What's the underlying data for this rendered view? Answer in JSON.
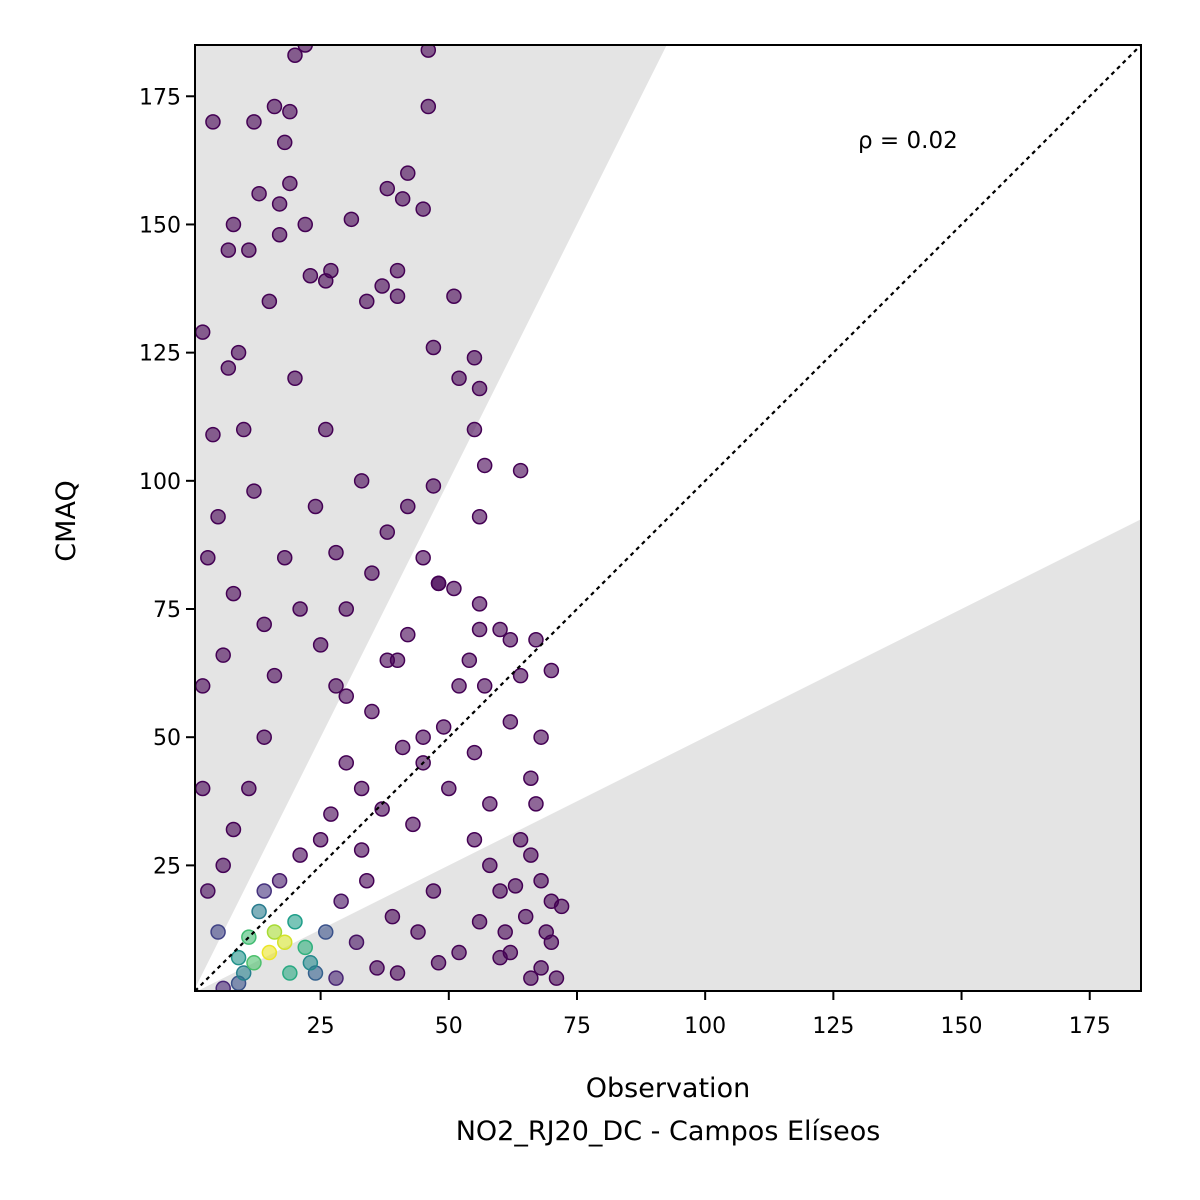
{
  "chart_data": {
    "type": "scatter",
    "title": "",
    "xlabel": "Observation",
    "xlabel_sub": "NO2_RJ20_DC - Campos Elíseos",
    "ylabel": "CMAQ",
    "xlim": [
      0.5,
      185
    ],
    "ylim": [
      0.5,
      185
    ],
    "xticks": [
      "25",
      "50",
      "75",
      "100",
      "125",
      "150",
      "175"
    ],
    "yticks": [
      "25",
      "50",
      "75",
      "100",
      "125",
      "150",
      "175"
    ],
    "annotation": "ρ = 0.02",
    "reference_line": "1:1 dotted",
    "shaded_regions": [
      {
        "description": "above factor-2 band",
        "slope_min": 2.0
      },
      {
        "description": "below factor-0.5 band",
        "slope_max": 0.5
      }
    ],
    "colormap": "viridis (point density)",
    "grid": false,
    "points_sample": [
      [
        15,
        8
      ],
      [
        18,
        10
      ],
      [
        12,
        6
      ],
      [
        16,
        12
      ],
      [
        20,
        14
      ],
      [
        14,
        20
      ],
      [
        22,
        9
      ],
      [
        10,
        4
      ],
      [
        25,
        30
      ],
      [
        30,
        45
      ],
      [
        28,
        60
      ],
      [
        35,
        55
      ],
      [
        40,
        65
      ],
      [
        45,
        50
      ],
      [
        50,
        40
      ],
      [
        55,
        30
      ],
      [
        60,
        20
      ],
      [
        65,
        15
      ],
      [
        70,
        10
      ],
      [
        68,
        5
      ],
      [
        62,
        8
      ],
      [
        58,
        25
      ],
      [
        52,
        60
      ],
      [
        48,
        80
      ],
      [
        42,
        70
      ],
      [
        38,
        90
      ],
      [
        33,
        100
      ],
      [
        26,
        110
      ],
      [
        20,
        120
      ],
      [
        15,
        135
      ],
      [
        11,
        145
      ],
      [
        8,
        150
      ],
      [
        12,
        170
      ],
      [
        4,
        170
      ],
      [
        2,
        129
      ],
      [
        7,
        145
      ],
      [
        13,
        156
      ],
      [
        16,
        173
      ],
      [
        19,
        172
      ],
      [
        18,
        166
      ],
      [
        20,
        183
      ],
      [
        22,
        185
      ],
      [
        46,
        184
      ],
      [
        46,
        173
      ],
      [
        42,
        160
      ],
      [
        38,
        157
      ],
      [
        41,
        155
      ],
      [
        45,
        153
      ],
      [
        31,
        151
      ],
      [
        34,
        135
      ],
      [
        37,
        138
      ],
      [
        40,
        141
      ],
      [
        40,
        136
      ],
      [
        51,
        136
      ],
      [
        23,
        140
      ],
      [
        26,
        139
      ],
      [
        27,
        141
      ],
      [
        17,
        154
      ],
      [
        19,
        158
      ],
      [
        17,
        148
      ],
      [
        22,
        150
      ],
      [
        55,
        124
      ],
      [
        56,
        118
      ],
      [
        52,
        120
      ],
      [
        47,
        126
      ],
      [
        55,
        110
      ],
      [
        57,
        103
      ],
      [
        64,
        102
      ],
      [
        56,
        93
      ],
      [
        47,
        99
      ],
      [
        42,
        95
      ],
      [
        45,
        85
      ],
      [
        48,
        80
      ],
      [
        51,
        79
      ],
      [
        56,
        76
      ],
      [
        56,
        71
      ],
      [
        60,
        71
      ],
      [
        62,
        69
      ],
      [
        67,
        69
      ],
      [
        70,
        63
      ],
      [
        64,
        62
      ],
      [
        57,
        60
      ],
      [
        54,
        65
      ],
      [
        62,
        53
      ],
      [
        68,
        50
      ],
      [
        66,
        42
      ],
      [
        67,
        37
      ],
      [
        64,
        30
      ],
      [
        66,
        27
      ],
      [
        68,
        22
      ],
      [
        70,
        18
      ],
      [
        72,
        17
      ],
      [
        69,
        12
      ],
      [
        71,
        3
      ],
      [
        66,
        3
      ],
      [
        60,
        7
      ],
      [
        63,
        21
      ],
      [
        58,
        37
      ],
      [
        55,
        47
      ],
      [
        49,
        52
      ],
      [
        45,
        45
      ],
      [
        43,
        33
      ],
      [
        32,
        10
      ],
      [
        36,
        5
      ],
      [
        28,
        3
      ],
      [
        24,
        4
      ],
      [
        9,
        2
      ],
      [
        6,
        1
      ],
      [
        3,
        20
      ],
      [
        2,
        40
      ],
      [
        2,
        60
      ],
      [
        3,
        85
      ],
      [
        5,
        93
      ],
      [
        4,
        109
      ],
      [
        7,
        122
      ],
      [
        9,
        125
      ],
      [
        10,
        110
      ],
      [
        12,
        98
      ],
      [
        8,
        78
      ],
      [
        6,
        66
      ],
      [
        14,
        72
      ],
      [
        18,
        85
      ],
      [
        24,
        95
      ],
      [
        28,
        86
      ],
      [
        30,
        75
      ],
      [
        35,
        82
      ],
      [
        38,
        65
      ],
      [
        33,
        40
      ],
      [
        27,
        35
      ],
      [
        21,
        27
      ],
      [
        17,
        22
      ],
      [
        13,
        16
      ],
      [
        11,
        11
      ],
      [
        9,
        7
      ],
      [
        19,
        4
      ],
      [
        23,
        6
      ],
      [
        26,
        12
      ],
      [
        29,
        18
      ],
      [
        34,
        22
      ],
      [
        39,
        15
      ],
      [
        44,
        12
      ],
      [
        47,
        20
      ],
      [
        52,
        8
      ],
      [
        56,
        14
      ],
      [
        61,
        12
      ],
      [
        48,
        6
      ],
      [
        40,
        4
      ],
      [
        33,
        28
      ],
      [
        37,
        36
      ],
      [
        41,
        48
      ],
      [
        30,
        58
      ],
      [
        25,
        68
      ],
      [
        21,
        75
      ],
      [
        16,
        62
      ],
      [
        14,
        50
      ],
      [
        11,
        40
      ],
      [
        8,
        32
      ],
      [
        6,
        25
      ],
      [
        5,
        12
      ]
    ]
  }
}
